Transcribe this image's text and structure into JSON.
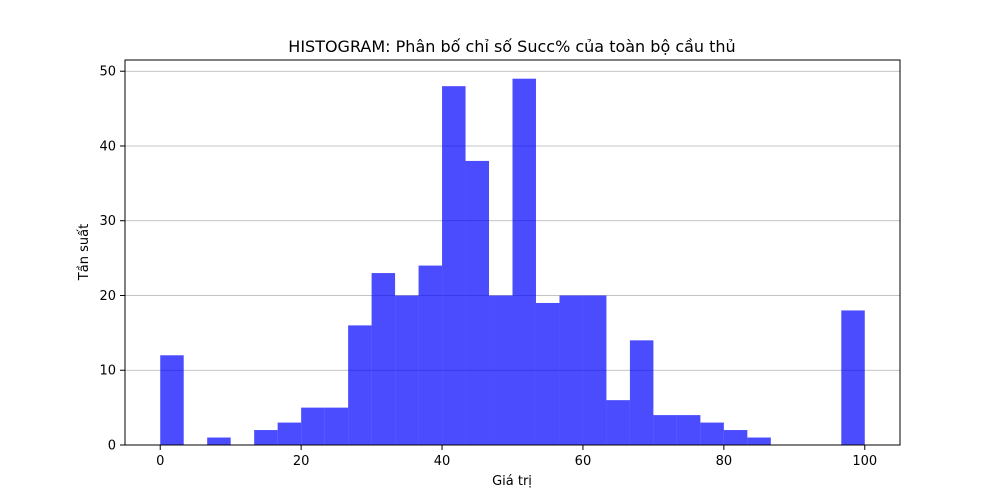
{
  "chart_data": {
    "type": "bar",
    "title": "HISTOGRAM: Phân bố chỉ số Succ% của toàn bộ cầu thủ",
    "xlabel": "Giá trị",
    "ylabel": "Tần suất",
    "xlim": [
      -5,
      105
    ],
    "ylim": [
      0,
      51.5
    ],
    "x_ticks": [
      0,
      20,
      40,
      60,
      80,
      100
    ],
    "y_ticks": [
      0,
      10,
      20,
      30,
      40,
      50
    ],
    "grid": "y",
    "bar_color": "#0000ff",
    "bar_alpha": 0.7,
    "bin_edges": [
      0,
      3.333,
      6.667,
      10,
      13.333,
      16.667,
      20,
      23.333,
      26.667,
      30,
      33.333,
      36.667,
      40,
      43.333,
      46.667,
      50,
      53.333,
      56.667,
      60,
      63.333,
      66.667,
      70,
      73.333,
      76.667,
      80,
      83.333,
      86.667,
      90,
      93.333,
      96.667,
      100
    ],
    "values": [
      12,
      0,
      1,
      0,
      2,
      3,
      5,
      5,
      16,
      23,
      20,
      24,
      48,
      38,
      20,
      49,
      19,
      20,
      20,
      6,
      14,
      4,
      4,
      3,
      2,
      1,
      0,
      0,
      0,
      18
    ]
  }
}
